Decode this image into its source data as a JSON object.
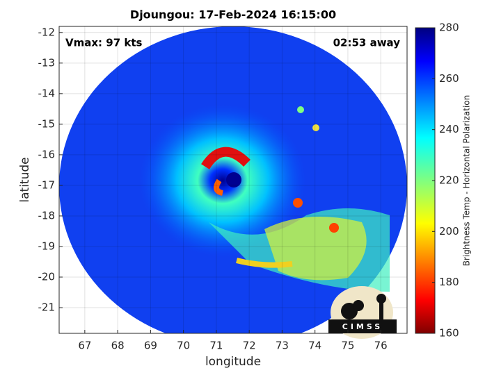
{
  "chart_data": {
    "type": "map",
    "title": "Djoungou: 17-Feb-2024 16:15:00",
    "xlabel": "longitude",
    "ylabel": "latitude",
    "annotations": [
      "Vmax: 97 kts",
      "02:53 away"
    ],
    "xlim": [
      66.22,
      76.8
    ],
    "ylim": [
      -21.84,
      -11.8
    ],
    "xticks": [
      67,
      68,
      69,
      70,
      71,
      72,
      73,
      74,
      75,
      76
    ],
    "yticks": [
      -12,
      -13,
      -14,
      -15,
      -16,
      -17,
      -18,
      -19,
      -20,
      -21
    ],
    "grid": true,
    "colorbar": {
      "label": "Brightness Temp - Horizontal Polarization",
      "lim": [
        160,
        280
      ],
      "ticks": [
        160,
        180,
        200,
        220,
        240,
        260,
        280
      ],
      "colormap": "jet"
    },
    "logo": "CIMSS"
  }
}
